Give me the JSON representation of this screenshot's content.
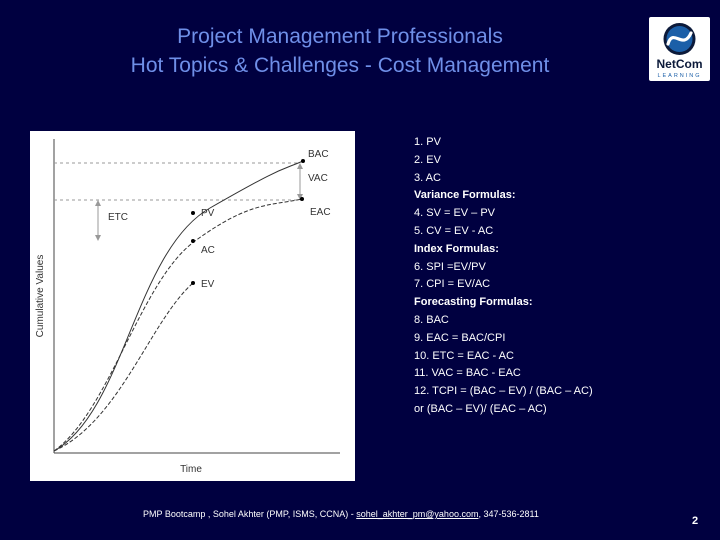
{
  "slide": {
    "title_line1": "Project Management Professionals",
    "title_line2": "Hot Topics & Challenges - Cost Management",
    "colors": {
      "background": "#000040",
      "title": "#6f8fe8",
      "text": "#ffffff"
    }
  },
  "logo": {
    "icon": "netcom-swirl-logo",
    "brand": "NetCom",
    "tagline": "LEARNING"
  },
  "figure": {
    "y_axis_label": "Cumulative Values",
    "x_axis_label": "Time",
    "labels": {
      "bac": "BAC",
      "vac": "VAC",
      "eac": "EAC",
      "etc": "ETC",
      "pv": "PV",
      "ac": "AC",
      "ev": "EV"
    }
  },
  "formulas": [
    {
      "text": "1. PV",
      "heading": false
    },
    {
      "text": "2. EV",
      "heading": false
    },
    {
      "text": "3. AC",
      "heading": false
    },
    {
      "text": "Variance Formulas:",
      "heading": true
    },
    {
      "text": "4. SV = EV – PV",
      "heading": false
    },
    {
      "text": "5. CV = EV - AC",
      "heading": false
    },
    {
      "text": "Index Formulas:",
      "heading": true
    },
    {
      "text": "6. SPI =EV/PV",
      "heading": false
    },
    {
      "text": "7. CPI = EV/AC",
      "heading": false
    },
    {
      "text": "Forecasting Formulas:",
      "heading": true
    },
    {
      "text": "8. BAC",
      "heading": false
    },
    {
      "text": "9. EAC = BAC/CPI",
      "heading": false
    },
    {
      "text": "10. ETC = EAC - AC",
      "heading": false
    },
    {
      "text": "11. VAC = BAC - EAC",
      "heading": false
    },
    {
      "text": "12. TCPI = (BAC – EV) / (BAC – AC)",
      "heading": false
    },
    {
      "text": "or (BAC – EV)/ (EAC – AC)",
      "heading": false
    }
  ],
  "footer": {
    "prefix": "PMP Bootcamp , Sohel Akhter (PMP, ISMS, CCNA) - ",
    "email": "sohel_akhter_pm@yahoo.com",
    "suffix": ", 347-536-2811"
  },
  "page_number": "2"
}
